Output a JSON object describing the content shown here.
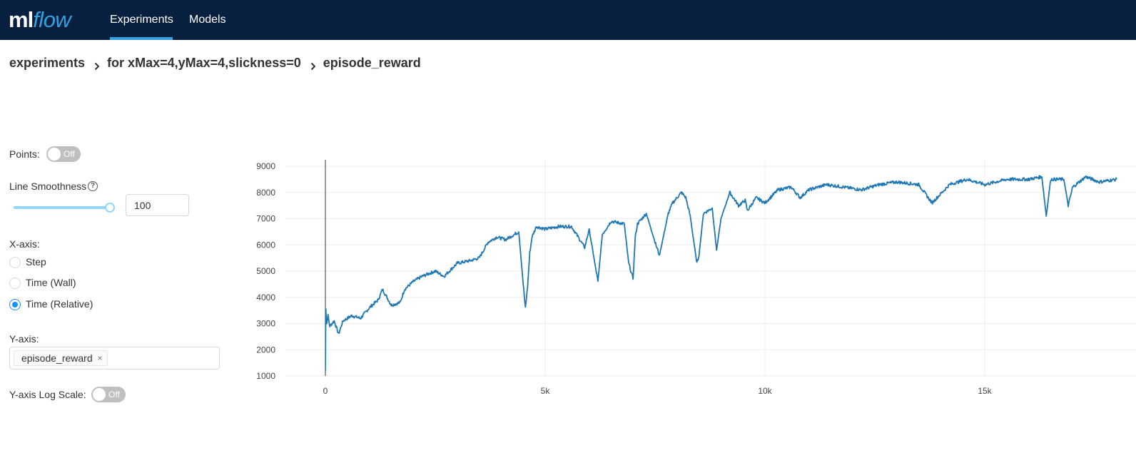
{
  "header": {
    "logo_ml": "ml",
    "logo_flow": "flow",
    "nav": [
      {
        "label": "Experiments",
        "active": true
      },
      {
        "label": "Models",
        "active": false
      }
    ],
    "background": "#082040",
    "accent": "#35a0e0"
  },
  "breadcrumb": [
    "experiments",
    "for xMax=4,yMax=4,slickness=0",
    "episode_reward"
  ],
  "controls": {
    "points_label": "Points:",
    "points_toggle": "Off",
    "smoothness_label": "Line Smoothness",
    "smoothness_help_icon": "question-circle-icon",
    "smoothness_value": "100",
    "smoothness_level": 1.0,
    "xaxis_label": "X-axis:",
    "xaxis_options": [
      {
        "label": "Step",
        "checked": false
      },
      {
        "label": "Time (Wall)",
        "checked": false
      },
      {
        "label": "Time (Relative)",
        "checked": true
      }
    ],
    "yaxis_label": "Y-axis:",
    "yaxis_tag": "episode_reward",
    "yaxis_tag_close": "×",
    "logscale_label": "Y-axis Log Scale:",
    "logscale_toggle": "Off"
  },
  "chart_data": {
    "type": "line",
    "title": "",
    "xlabel": "",
    "ylabel": "",
    "ylim": [
      1000,
      9000
    ],
    "xlim": [
      0,
      18000
    ],
    "x_ticks": [
      "0",
      "5k",
      "10k",
      "15k"
    ],
    "y_ticks": [
      "1000",
      "2000",
      "3000",
      "4000",
      "5000",
      "6000",
      "7000",
      "8000",
      "9000"
    ],
    "grid": true,
    "line_color": "#1f77b4",
    "series": [
      {
        "name": "",
        "x": [
          0,
          10,
          30,
          60,
          100,
          200,
          300,
          400,
          600,
          800,
          1000,
          1200,
          1300,
          1500,
          1700,
          1800,
          2000,
          2200,
          2500,
          2700,
          3000,
          3300,
          3500,
          3700,
          3900,
          4100,
          4300,
          4400,
          4500,
          4550,
          4600,
          4650,
          4700,
          4800,
          5000,
          5300,
          5600,
          5900,
          6000,
          6150,
          6200,
          6300,
          6500,
          6800,
          6900,
          7000,
          7050,
          7100,
          7300,
          7500,
          7600,
          7800,
          7900,
          8100,
          8200,
          8300,
          8450,
          8500,
          8600,
          8800,
          8900,
          9000,
          9200,
          9400,
          9550,
          9600,
          9800,
          10000,
          10300,
          10600,
          10800,
          11000,
          11400,
          11800,
          12200,
          12600,
          13000,
          13500,
          13800,
          14200,
          14600,
          15000,
          15500,
          16000,
          16300,
          16400,
          16500,
          16800,
          16900,
          17000,
          17300,
          17600,
          18000
        ],
        "y": [
          1200,
          3600,
          3000,
          3300,
          2900,
          3100,
          2600,
          3100,
          3300,
          3200,
          3600,
          3900,
          4300,
          3700,
          3800,
          4300,
          4600,
          4800,
          5000,
          4800,
          5300,
          5400,
          5500,
          6100,
          6300,
          6200,
          6400,
          6500,
          4500,
          3600,
          4400,
          5700,
          6300,
          6700,
          6600,
          6700,
          6700,
          5900,
          6600,
          5100,
          4600,
          6400,
          6900,
          6800,
          5300,
          4700,
          6300,
          6800,
          7200,
          6100,
          5600,
          7200,
          7600,
          8000,
          7800,
          7100,
          5300,
          5600,
          7200,
          7400,
          5800,
          7000,
          8000,
          7500,
          7700,
          7300,
          7800,
          7600,
          8100,
          8200,
          7800,
          8100,
          8300,
          8200,
          8100,
          8300,
          8400,
          8300,
          7600,
          8300,
          8500,
          8300,
          8500,
          8500,
          8600,
          7100,
          8500,
          8500,
          7500,
          8200,
          8600,
          8400,
          8500
        ]
      }
    ]
  }
}
